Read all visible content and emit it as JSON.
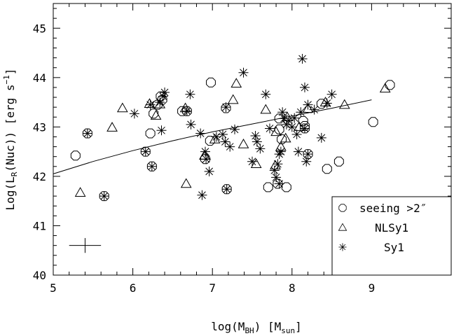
{
  "chart_data": {
    "type": "scatter",
    "x_axis": {
      "label_main": "log(M",
      "label_sub": "BH",
      "label_mid": ") [M",
      "label_sub2": "sun",
      "label_end": "]",
      "range": [
        5,
        10
      ],
      "ticks": [
        5,
        6,
        7,
        8,
        9
      ],
      "tick_labels": [
        "5",
        "6",
        "7",
        "8",
        "9"
      ]
    },
    "y_axis": {
      "label_main": "Log(L",
      "label_sub": "R",
      "label_mid": "(Nuc)) [erg s",
      "label_sup": "−1",
      "label_end": "]",
      "range": [
        40,
        45.5
      ],
      "ticks": [
        40,
        41,
        42,
        43,
        44,
        45
      ],
      "tick_labels": [
        "40",
        "41",
        "42",
        "43",
        "44",
        "45"
      ]
    },
    "grid": false,
    "legend": {
      "placement": "bottom-right",
      "entries": [
        {
          "marker": "circle",
          "label": "seeing >2″"
        },
        {
          "marker": "triangle",
          "label": "NLSy1"
        },
        {
          "marker": "asterisk",
          "label": "Sy1"
        }
      ]
    },
    "fit_line": {
      "x": [
        5.0,
        5.5,
        6.0,
        6.5,
        7.0,
        7.5,
        8.0,
        8.5,
        9.0
      ],
      "y": [
        42.05,
        42.3,
        42.52,
        42.72,
        42.9,
        43.06,
        43.22,
        43.38,
        43.55
      ]
    },
    "error_bar": {
      "x": 5.4,
      "y": 40.6,
      "xerr": 0.2,
      "yerr": 0.15
    },
    "series": [
      {
        "name": "seeing >2″",
        "marker": "circle",
        "points": [
          [
            5.28,
            42.42
          ],
          [
            5.43,
            42.87
          ],
          [
            5.64,
            41.6
          ],
          [
            6.16,
            42.5
          ],
          [
            6.22,
            42.87
          ],
          [
            6.24,
            42.2
          ],
          [
            6.26,
            43.27
          ],
          [
            6.31,
            43.45
          ],
          [
            6.35,
            43.62
          ],
          [
            6.62,
            43.32
          ],
          [
            6.68,
            43.32
          ],
          [
            6.91,
            42.35
          ],
          [
            6.97,
            42.72
          ],
          [
            6.98,
            43.9
          ],
          [
            7.17,
            43.38
          ],
          [
            7.18,
            41.74
          ],
          [
            7.7,
            41.78
          ],
          [
            7.82,
            41.85
          ],
          [
            7.84,
            42.95
          ],
          [
            7.87,
            42.75
          ],
          [
            7.93,
            41.78
          ],
          [
            8.14,
            43.12
          ],
          [
            8.16,
            43.02
          ],
          [
            8.16,
            42.97
          ],
          [
            8.2,
            42.45
          ],
          [
            8.37,
            43.47
          ],
          [
            8.44,
            42.15
          ],
          [
            8.59,
            42.3
          ],
          [
            9.02,
            43.1
          ],
          [
            9.23,
            43.85
          ],
          [
            7.84,
            43.17
          ],
          [
            6.37,
            43.55
          ]
        ]
      },
      {
        "name": "NLSy1",
        "marker": "triangle",
        "points": [
          [
            5.34,
            41.67
          ],
          [
            5.74,
            42.99
          ],
          [
            5.87,
            43.38
          ],
          [
            6.21,
            43.47
          ],
          [
            6.29,
            43.23
          ],
          [
            6.34,
            43.46
          ],
          [
            6.66,
            43.38
          ],
          [
            6.67,
            41.85
          ],
          [
            6.9,
            42.42
          ],
          [
            7.03,
            42.75
          ],
          [
            7.26,
            43.55
          ],
          [
            7.3,
            43.88
          ],
          [
            7.39,
            42.65
          ],
          [
            7.55,
            42.25
          ],
          [
            7.67,
            43.35
          ],
          [
            7.79,
            42.22
          ],
          [
            7.8,
            42.9
          ],
          [
            7.86,
            42.6
          ],
          [
            7.92,
            42.77
          ],
          [
            7.94,
            43.2
          ],
          [
            8.09,
            43.0
          ],
          [
            8.2,
            43.37
          ],
          [
            8.42,
            43.5
          ],
          [
            8.66,
            43.45
          ],
          [
            9.17,
            43.78
          ]
        ]
      },
      {
        "name": "Sy1",
        "marker": "asterisk",
        "points": [
          [
            5.43,
            42.87
          ],
          [
            5.64,
            41.6
          ],
          [
            6.02,
            43.27
          ],
          [
            6.16,
            42.5
          ],
          [
            6.22,
            43.45
          ],
          [
            6.24,
            42.2
          ],
          [
            6.34,
            43.5
          ],
          [
            6.36,
            42.93
          ],
          [
            6.38,
            43.62
          ],
          [
            6.4,
            43.7
          ],
          [
            6.68,
            43.32
          ],
          [
            6.72,
            43.66
          ],
          [
            6.73,
            43.05
          ],
          [
            6.85,
            42.87
          ],
          [
            6.87,
            41.62
          ],
          [
            6.91,
            42.5
          ],
          [
            6.92,
            42.35
          ],
          [
            6.96,
            42.1
          ],
          [
            7.05,
            42.8
          ],
          [
            7.13,
            42.85
          ],
          [
            7.16,
            42.7
          ],
          [
            7.17,
            43.4
          ],
          [
            7.18,
            41.74
          ],
          [
            7.22,
            42.6
          ],
          [
            7.28,
            42.95
          ],
          [
            7.39,
            44.1
          ],
          [
            7.5,
            42.3
          ],
          [
            7.54,
            42.82
          ],
          [
            7.56,
            42.7
          ],
          [
            7.6,
            42.56
          ],
          [
            7.67,
            43.66
          ],
          [
            7.72,
            42.97
          ],
          [
            7.78,
            42.12
          ],
          [
            7.8,
            41.98
          ],
          [
            7.82,
            42.25
          ],
          [
            7.84,
            42.45
          ],
          [
            7.86,
            42.5
          ],
          [
            7.88,
            43.3
          ],
          [
            7.9,
            43.17
          ],
          [
            7.93,
            43.05
          ],
          [
            7.96,
            43.13
          ],
          [
            8.03,
            43.18
          ],
          [
            8.06,
            42.85
          ],
          [
            8.08,
            42.5
          ],
          [
            8.11,
            43.3
          ],
          [
            8.13,
            44.38
          ],
          [
            8.16,
            43.8
          ],
          [
            8.18,
            42.3
          ],
          [
            8.2,
            43.45
          ],
          [
            8.28,
            43.35
          ],
          [
            8.37,
            42.78
          ],
          [
            8.44,
            43.48
          ],
          [
            8.5,
            43.66
          ],
          [
            8.16,
            42.97
          ],
          [
            8.2,
            42.45
          ],
          [
            7.84,
            41.85
          ],
          [
            8.0,
            43.0
          ]
        ]
      }
    ]
  }
}
